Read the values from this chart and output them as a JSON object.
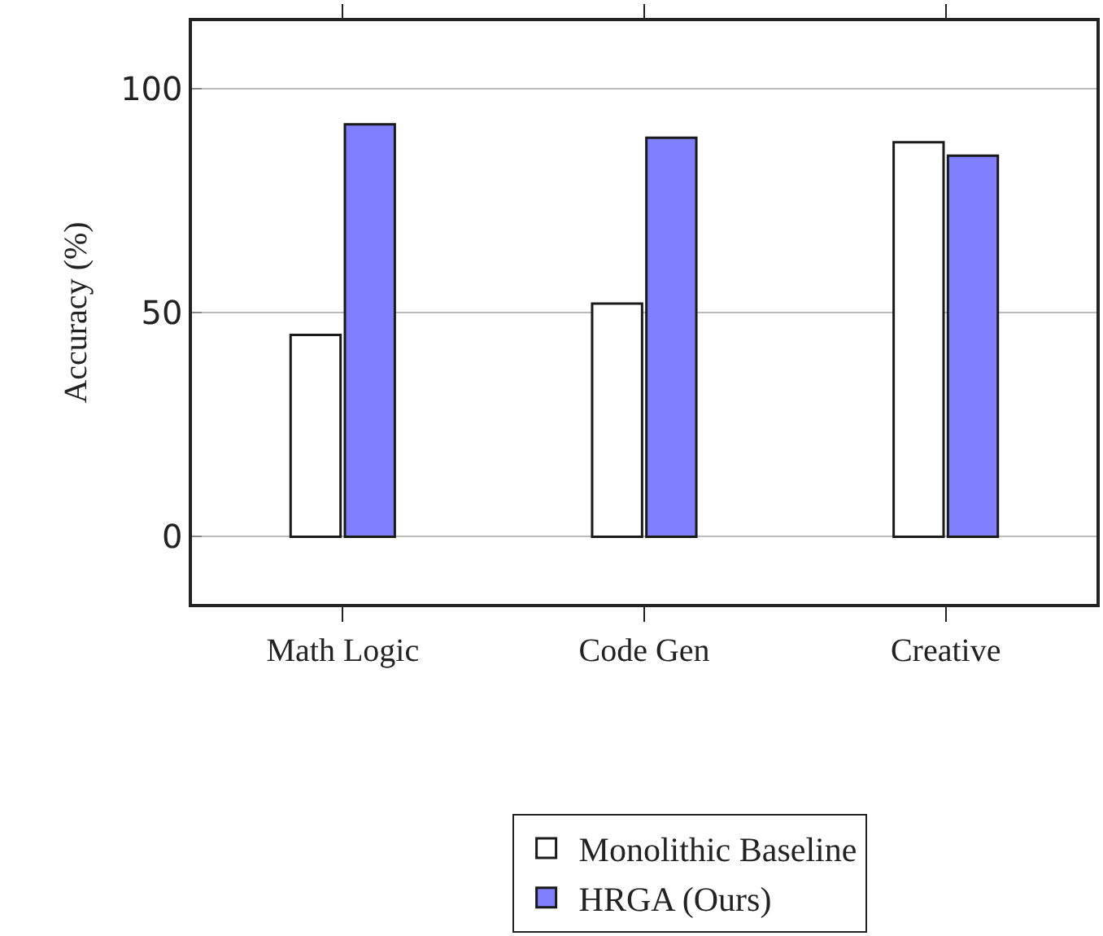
{
  "chart_data": {
    "type": "bar",
    "ylabel": "Accuracy (%)",
    "categories": [
      "Math Logic",
      "Code Gen",
      "Creative"
    ],
    "series": [
      {
        "name": "Monolithic Baseline",
        "color": "#ffffff",
        "values": [
          45,
          52,
          88
        ]
      },
      {
        "name": "HRGA (Ours)",
        "color": "#7f7fff",
        "values": [
          92,
          89,
          85
        ]
      }
    ],
    "ylim": [
      -15,
      115
    ],
    "yticks": [
      0,
      50,
      100
    ],
    "grid": "y",
    "legend": "bottom"
  }
}
